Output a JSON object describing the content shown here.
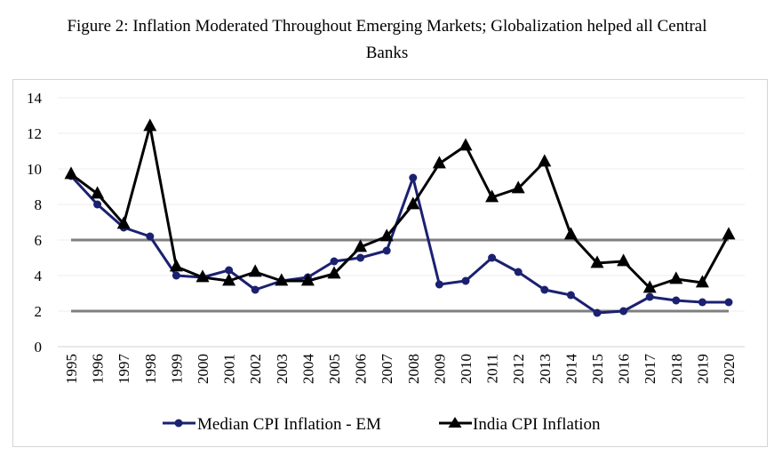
{
  "figure": {
    "title_line1": "Figure 2: Inflation Moderated Throughout Emerging Markets; Globalization helped all Central",
    "title_line2": "Banks"
  },
  "colors": {
    "median_series": "#1b2170",
    "india_series": "#000000",
    "threshold_lines": "#7f7f7f",
    "gridlines": "#ececec",
    "frame_border": "#d4d4d4"
  },
  "chart_data": {
    "type": "line",
    "title": "Figure 2: Inflation Moderated Throughout Emerging Markets; Globalization helped all Central Banks",
    "xlabel": "",
    "ylabel": "",
    "ylim": [
      0,
      14
    ],
    "yticks": [
      0,
      2,
      4,
      6,
      8,
      10,
      12,
      14
    ],
    "grid": true,
    "legend_position": "bottom",
    "categories": [
      "1995",
      "1996",
      "1997",
      "1998",
      "1999",
      "2000",
      "2001",
      "2002",
      "2003",
      "2004",
      "2005",
      "2006",
      "2007",
      "2008",
      "2009",
      "2010",
      "2011",
      "2012",
      "2013",
      "2014",
      "2015",
      "2016",
      "2017",
      "2018",
      "2019",
      "2020"
    ],
    "series": [
      {
        "name": "Median CPI Inflation - EM",
        "marker": "circle",
        "color": "#1b2170",
        "values": [
          9.6,
          8.0,
          6.7,
          6.2,
          4.0,
          3.9,
          4.3,
          3.2,
          3.7,
          3.9,
          4.8,
          5.0,
          5.4,
          9.5,
          3.5,
          3.7,
          5.0,
          4.2,
          3.2,
          2.9,
          1.9,
          2.0,
          2.8,
          2.6,
          2.5,
          2.5
        ]
      },
      {
        "name": "India CPI Inflation",
        "marker": "triangle",
        "color": "#000000",
        "values": [
          9.7,
          8.6,
          6.9,
          12.4,
          4.5,
          3.9,
          3.7,
          4.2,
          3.7,
          3.7,
          4.1,
          5.6,
          6.2,
          8.0,
          10.3,
          11.3,
          8.4,
          8.9,
          10.4,
          6.3,
          4.7,
          4.8,
          3.3,
          3.8,
          3.6,
          6.3
        ]
      }
    ],
    "reference_lines": [
      {
        "name": "upper-band",
        "y": 6
      },
      {
        "name": "lower-band",
        "y": 2
      }
    ]
  }
}
